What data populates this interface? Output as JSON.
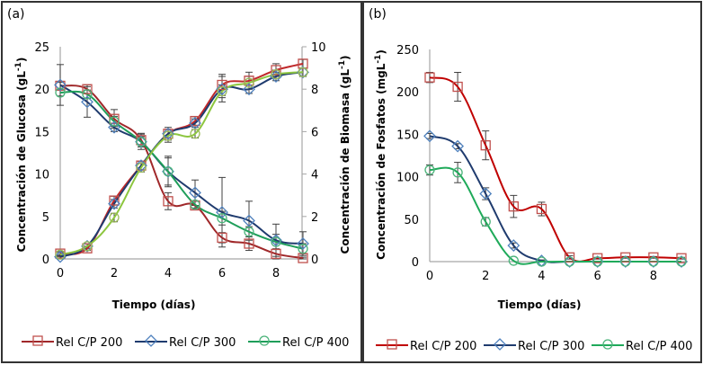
{
  "chart_data": [
    {
      "type": "line",
      "panel_label": "(a)",
      "xlabel": "Tiempo (días)",
      "ylabel": "Concentración de Glucosa (gL-1)",
      "ylabel_parts": {
        "main": "Concentración de Glucosa (gL",
        "sup": "-1",
        "end": ")"
      },
      "y2label": "Concentración de Biomasa (gL-1)",
      "y2label_parts": {
        "main": "Concentración de Biomasa (gL",
        "sup": "-1",
        "end": ")"
      },
      "xlim": [
        0,
        9
      ],
      "ylim": [
        0,
        25
      ],
      "y2lim": [
        0,
        10
      ],
      "xticks": [
        0,
        2,
        4,
        6,
        8
      ],
      "yticks": [
        0,
        5,
        10,
        15,
        20,
        25
      ],
      "y2ticks": [
        0,
        2,
        4,
        6,
        8,
        10
      ],
      "grid": false,
      "legend_position": "bottom",
      "x": [
        0,
        1,
        2,
        3,
        4,
        5,
        6,
        7,
        8,
        9
      ],
      "series": [
        {
          "name": "Rel C/P 200",
          "axis": "left",
          "quantity": "glucosa",
          "marker": "square",
          "color": "#a0282a",
          "marker_color": "#c0504d",
          "values": [
            20.4,
            20.0,
            16.5,
            14.0,
            6.8,
            6.3,
            2.5,
            1.8,
            0.6,
            0.1
          ],
          "errors": [
            0.4,
            0.5,
            1.1,
            0.8,
            1.0,
            0.5,
            0.6,
            0.8,
            0.6,
            0.1
          ]
        },
        {
          "name": "Rel C/P 300",
          "axis": "left",
          "quantity": "glucosa",
          "marker": "diamond",
          "color": "#1f3b6e",
          "marker_color": "#4f81bd",
          "values": [
            20.5,
            18.5,
            15.5,
            13.8,
            10.3,
            7.8,
            5.5,
            4.5,
            2.2,
            1.8
          ],
          "errors": [
            2.4,
            1.8,
            0.5,
            0.9,
            1.8,
            1.5,
            4.1,
            2.3,
            1.9,
            1.4
          ]
        },
        {
          "name": "Rel C/P 400",
          "axis": "left",
          "quantity": "glucosa",
          "marker": "circle",
          "color": "#1f9e5a",
          "marker_color": "#4bb37a",
          "values": [
            19.6,
            19.4,
            16.2,
            13.8,
            10.3,
            6.4,
            4.8,
            3.2,
            2.0,
            1.2
          ],
          "errors": [
            0.4,
            0.5,
            0.6,
            0.6,
            1.6,
            0.4,
            0.8,
            0.6,
            0.9,
            0.6
          ]
        },
        {
          "name": "Rel C/P 200",
          "axis": "right",
          "quantity": "biomasa",
          "marker": "square",
          "color": "#c0282a",
          "marker_color": "#c0504d",
          "values": [
            0.25,
            0.5,
            2.75,
            4.4,
            5.9,
            6.5,
            8.2,
            8.4,
            8.9,
            9.2
          ],
          "errors": [
            0.1,
            0.1,
            0.2,
            0.2,
            0.2,
            0.2,
            0.5,
            0.4,
            0.3,
            0.2
          ]
        },
        {
          "name": "Rel C/P 300",
          "axis": "right",
          "quantity": "biomasa",
          "marker": "diamond",
          "color": "#1f3b6e",
          "marker_color": "#4f81bd",
          "values": [
            0.1,
            0.6,
            2.6,
            4.4,
            5.9,
            6.4,
            8.0,
            8.0,
            8.6,
            8.8
          ],
          "errors": [
            0.1,
            0.1,
            0.2,
            0.2,
            0.3,
            0.2,
            0.6,
            0.2,
            0.2,
            0.2
          ]
        },
        {
          "name": "Rel C/P 400",
          "axis": "right",
          "quantity": "biomasa",
          "marker": "circle",
          "color": "#8dc63f",
          "marker_color": "#9bbb59",
          "values": [
            0.2,
            0.6,
            1.95,
            4.3,
            5.8,
            5.9,
            7.9,
            8.3,
            8.7,
            8.8
          ],
          "errors": [
            0.1,
            0.1,
            0.2,
            0.2,
            0.3,
            0.2,
            0.3,
            0.3,
            0.2,
            0.2
          ]
        }
      ],
      "legend": [
        {
          "label": "Rel C/P 200",
          "marker": "square",
          "color": "#a0282a",
          "marker_color": "#c0504d"
        },
        {
          "label": "Rel C/P 300",
          "marker": "diamond",
          "color": "#1f3b6e",
          "marker_color": "#4f81bd"
        },
        {
          "label": "Rel C/P 400",
          "marker": "circle",
          "color": "#1f9e5a",
          "marker_color": "#4bb37a"
        }
      ]
    },
    {
      "type": "line",
      "panel_label": "(b)",
      "xlabel": "Tiempo (días)",
      "ylabel": "Concentración de Fosfatos (mgL-1)",
      "ylabel_parts": {
        "main": "Concentración de Fosfatos (mgL",
        "sup": "-1",
        "end": ")"
      },
      "xlim": [
        0,
        9
      ],
      "ylim": [
        0,
        250
      ],
      "xticks": [
        0,
        2,
        4,
        6,
        8
      ],
      "yticks": [
        0,
        50,
        100,
        150,
        200,
        250
      ],
      "grid": false,
      "legend_position": "bottom",
      "x": [
        0,
        1,
        2,
        3,
        4,
        5,
        6,
        7,
        8,
        9
      ],
      "series": [
        {
          "name": "Rel C/P 200",
          "marker": "square",
          "color": "#c00000",
          "marker_color": "#c0504d",
          "values": [
            217,
            206,
            137,
            65,
            62,
            5,
            4,
            5,
            5,
            4
          ],
          "errors": [
            6,
            17,
            17,
            13,
            8,
            2,
            1,
            1,
            1,
            1
          ]
        },
        {
          "name": "Rel C/P 300",
          "marker": "diamond",
          "color": "#1f3b6e",
          "marker_color": "#4f81bd",
          "values": [
            148,
            136,
            80,
            19,
            1,
            0,
            0,
            0,
            0,
            0
          ],
          "errors": [
            3,
            3,
            7,
            3,
            1,
            0,
            0,
            0,
            0,
            0
          ]
        },
        {
          "name": "Rel C/P 400",
          "marker": "circle",
          "color": "#1faa5a",
          "marker_color": "#4bb37a",
          "values": [
            108,
            105,
            47,
            1,
            0,
            0,
            0,
            0,
            0,
            0
          ],
          "errors": [
            6,
            12,
            5,
            0,
            0,
            0,
            0,
            0,
            0,
            0
          ]
        }
      ],
      "legend": [
        {
          "label": "Rel C/P 200",
          "marker": "square",
          "color": "#c00000",
          "marker_color": "#c0504d"
        },
        {
          "label": "Rel C/P 300",
          "marker": "diamond",
          "color": "#1f3b6e",
          "marker_color": "#4f81bd"
        },
        {
          "label": "Rel C/P 400",
          "marker": "circle",
          "color": "#1faa5a",
          "marker_color": "#4bb37a"
        }
      ]
    }
  ]
}
